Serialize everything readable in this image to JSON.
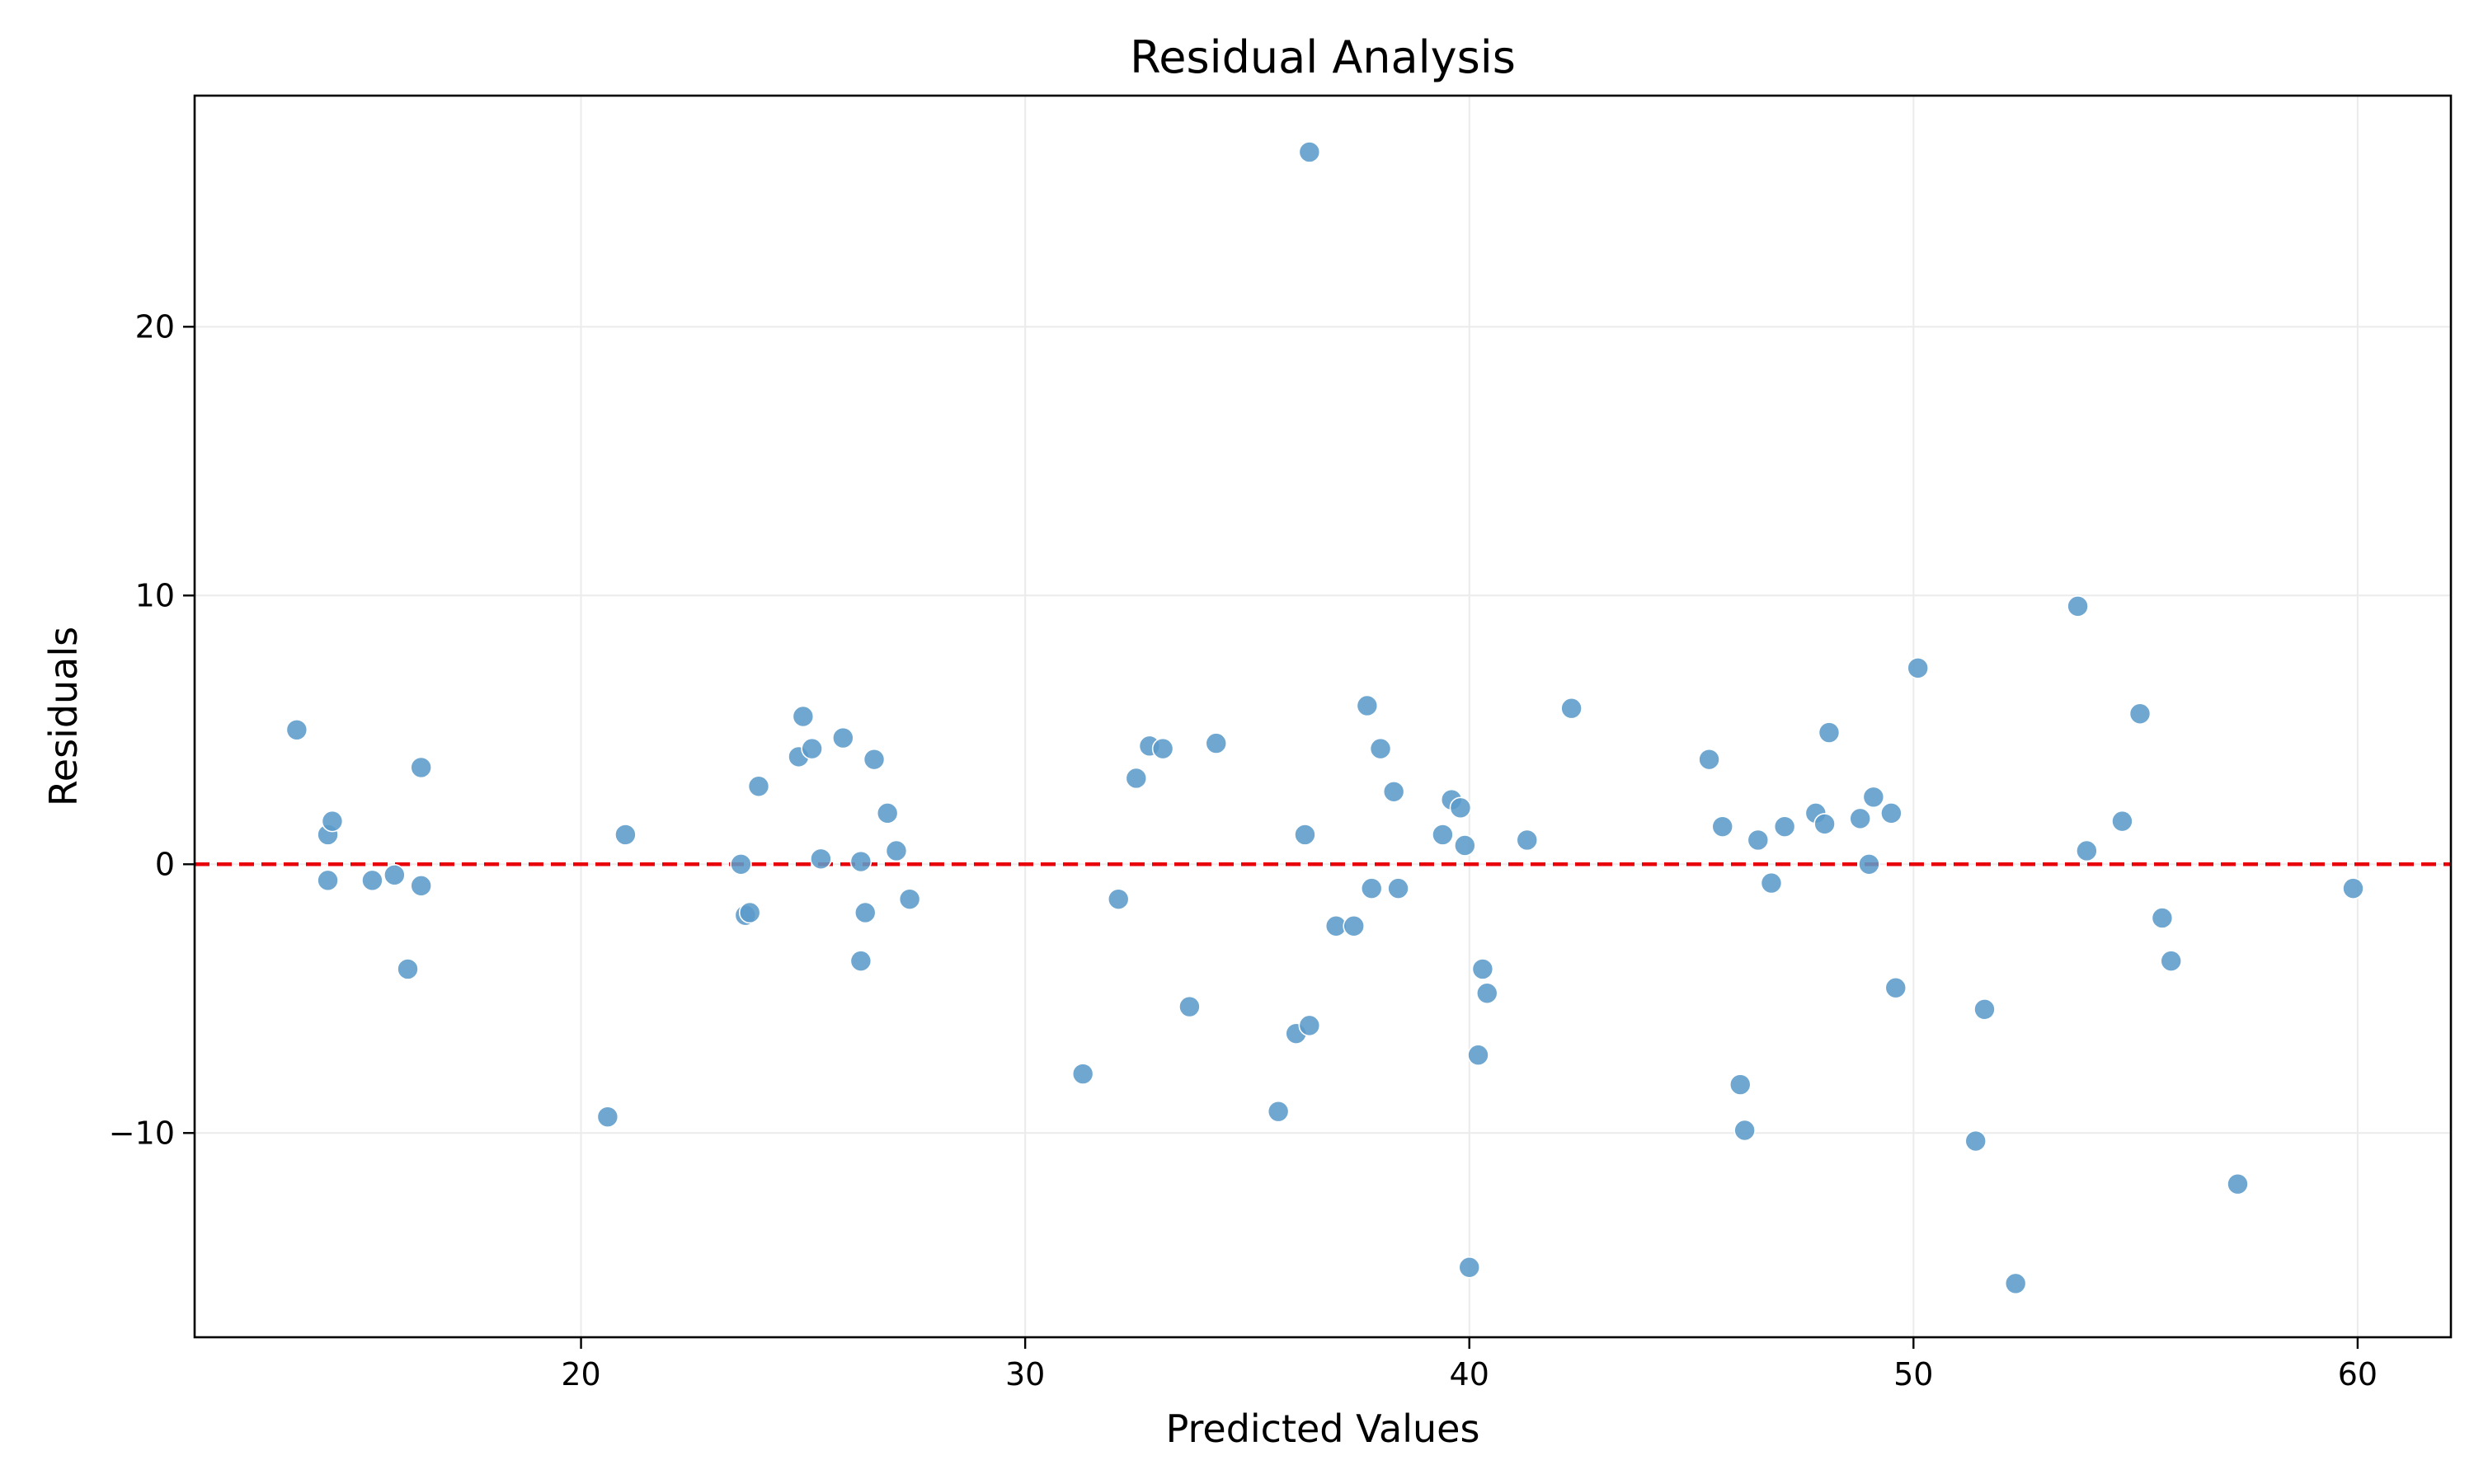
{
  "chart_data": {
    "type": "scatter",
    "title": "Residual Analysis",
    "xlabel": "Predicted Values",
    "ylabel": "Residuals",
    "xlim": [
      11.3,
      62.1
    ],
    "ylim": [
      -17.6,
      28.6
    ],
    "xticks": [
      20,
      30,
      40,
      50,
      60
    ],
    "yticks": [
      -10,
      0,
      10,
      20
    ],
    "xtick_labels": [
      "20",
      "30",
      "40",
      "50",
      "60"
    ],
    "ytick_labels": [
      "−10",
      "0",
      "10",
      "20"
    ],
    "grid": true,
    "reference_line": {
      "y": 0,
      "style": "dashed",
      "color": "#e8000b"
    },
    "point_color": "#5b9bc9",
    "series": [
      {
        "points": [
          [
            13.6,
            5.0
          ],
          [
            14.3,
            -0.6
          ],
          [
            14.3,
            1.1
          ],
          [
            14.4,
            1.6
          ],
          [
            15.3,
            -0.6
          ],
          [
            15.8,
            -0.4
          ],
          [
            16.1,
            -3.9
          ],
          [
            16.4,
            3.6
          ],
          [
            16.4,
            -0.8
          ],
          [
            20.6,
            -9.4
          ],
          [
            21.0,
            1.1
          ],
          [
            23.6,
            0.0
          ],
          [
            23.7,
            -1.9
          ],
          [
            23.8,
            -1.8
          ],
          [
            24.0,
            2.9
          ],
          [
            24.9,
            4.0
          ],
          [
            25.0,
            5.5
          ],
          [
            25.2,
            4.3
          ],
          [
            25.4,
            0.2
          ],
          [
            25.9,
            4.7
          ],
          [
            26.3,
            0.1
          ],
          [
            26.3,
            -3.6
          ],
          [
            26.4,
            -1.8
          ],
          [
            26.6,
            3.9
          ],
          [
            26.9,
            1.9
          ],
          [
            27.1,
            0.5
          ],
          [
            27.4,
            -1.3
          ],
          [
            31.3,
            -7.8
          ],
          [
            32.1,
            -1.3
          ],
          [
            32.5,
            3.2
          ],
          [
            32.8,
            4.4
          ],
          [
            33.1,
            4.3
          ],
          [
            33.7,
            -5.3
          ],
          [
            34.3,
            4.5
          ],
          [
            35.7,
            -9.2
          ],
          [
            36.1,
            -6.3
          ],
          [
            36.3,
            1.1
          ],
          [
            36.4,
            -6.0
          ],
          [
            36.4,
            26.5
          ],
          [
            37.0,
            -2.3
          ],
          [
            37.4,
            -2.3
          ],
          [
            37.7,
            5.9
          ],
          [
            37.8,
            -0.9
          ],
          [
            38.0,
            4.3
          ],
          [
            38.3,
            2.7
          ],
          [
            38.4,
            -0.9
          ],
          [
            39.4,
            1.1
          ],
          [
            39.6,
            2.4
          ],
          [
            39.8,
            2.1
          ],
          [
            39.9,
            0.7
          ],
          [
            40.0,
            -15.0
          ],
          [
            40.2,
            -7.1
          ],
          [
            40.3,
            -3.9
          ],
          [
            40.4,
            -4.8
          ],
          [
            41.3,
            0.9
          ],
          [
            42.3,
            5.8
          ],
          [
            45.4,
            3.9
          ],
          [
            45.7,
            1.4
          ],
          [
            46.1,
            -8.2
          ],
          [
            46.2,
            -9.9
          ],
          [
            46.5,
            0.9
          ],
          [
            46.8,
            -0.7
          ],
          [
            47.1,
            1.4
          ],
          [
            47.8,
            1.9
          ],
          [
            48.0,
            1.5
          ],
          [
            48.1,
            4.9
          ],
          [
            48.8,
            1.7
          ],
          [
            49.0,
            0.0
          ],
          [
            49.1,
            2.5
          ],
          [
            49.5,
            1.9
          ],
          [
            49.6,
            -4.6
          ],
          [
            50.1,
            7.3
          ],
          [
            51.4,
            -10.3
          ],
          [
            51.6,
            -5.4
          ],
          [
            52.3,
            -15.6
          ],
          [
            53.7,
            9.6
          ],
          [
            53.9,
            0.5
          ],
          [
            54.7,
            1.6
          ],
          [
            55.1,
            5.6
          ],
          [
            55.6,
            -2.0
          ],
          [
            55.8,
            -3.6
          ],
          [
            57.3,
            -11.9
          ],
          [
            59.9,
            -0.9
          ]
        ]
      }
    ]
  }
}
